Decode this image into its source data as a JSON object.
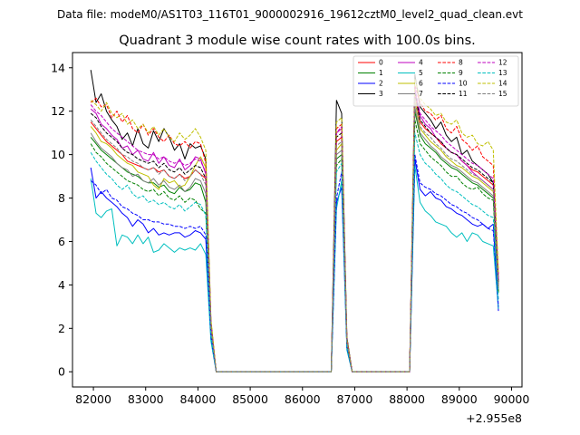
{
  "chart_data": {
    "type": "line",
    "suptitle": "Data file: modeM0/AS1T03_116T01_9000002916_19612cztM0_level2_quad_clean.evt",
    "title": "Quadrant 3 module wise count rates with 100.0s bins.",
    "xlabel": "",
    "ylabel": "",
    "x_offset_label": "+2.955e8",
    "xlim": [
      81600,
      90200
    ],
    "ylim": [
      -0.7,
      14.7
    ],
    "xticks": [
      82000,
      83000,
      84000,
      85000,
      86000,
      87000,
      88000,
      89000,
      90000
    ],
    "xtick_labels": [
      "82000",
      "83000",
      "84000",
      "85000",
      "86000",
      "87000",
      "88000",
      "89000",
      "90000"
    ],
    "yticks": [
      0,
      2,
      4,
      6,
      8,
      10,
      12,
      14
    ],
    "ytick_labels": [
      "0",
      "2",
      "4",
      "6",
      "8",
      "10",
      "12",
      "14"
    ],
    "x": [
      81950,
      82050,
      82150,
      82250,
      82350,
      82450,
      82550,
      82650,
      82750,
      82850,
      82950,
      83050,
      83150,
      83250,
      83350,
      83450,
      83550,
      83650,
      83750,
      83850,
      83950,
      84050,
      84150,
      84250,
      84350,
      84450,
      86550,
      86650,
      86750,
      86850,
      86950,
      88050,
      88150,
      88250,
      88350,
      88450,
      88550,
      88650,
      88750,
      88850,
      88950,
      89050,
      89150,
      89250,
      89350,
      89450,
      89550,
      89650,
      89750
    ],
    "legend": {
      "position": "top-right",
      "ncol": 4
    },
    "series": [
      {
        "name": "0",
        "color": "#ff0000",
        "dashed": false,
        "values": [
          11.5,
          11.2,
          10.9,
          10.6,
          10.4,
          10.2,
          10.0,
          9.7,
          9.6,
          9.5,
          9.4,
          9.3,
          9.4,
          9.2,
          9.3,
          9.0,
          8.9,
          9.1,
          8.9,
          9.0,
          9.3,
          9.1,
          8.9,
          2.0,
          0.0,
          0.0,
          0.0,
          10.6,
          10.8,
          1.4,
          0.0,
          0.0,
          12.8,
          11.5,
          11.2,
          11.0,
          10.8,
          10.5,
          10.3,
          10.1,
          10.0,
          9.7,
          9.5,
          9.3,
          9.2,
          9.0,
          8.8,
          8.6,
          4.0
        ]
      },
      {
        "name": "1",
        "color": "#008000",
        "dashed": false,
        "values": [
          10.8,
          10.5,
          10.2,
          10.0,
          9.8,
          9.6,
          9.4,
          9.2,
          9.1,
          9.0,
          8.8,
          8.7,
          8.7,
          8.5,
          8.6,
          8.3,
          8.2,
          8.5,
          8.3,
          8.4,
          8.7,
          8.6,
          7.8,
          2.0,
          0.0,
          0.0,
          0.0,
          9.8,
          10.0,
          1.3,
          0.0,
          0.0,
          12.0,
          10.9,
          10.5,
          10.3,
          10.1,
          9.8,
          9.6,
          9.4,
          9.3,
          9.1,
          8.9,
          8.7,
          8.6,
          8.4,
          8.2,
          8.0,
          3.7
        ]
      },
      {
        "name": "2",
        "color": "#0000ff",
        "dashed": false,
        "values": [
          9.4,
          8.0,
          8.3,
          8.0,
          7.8,
          7.6,
          7.3,
          7.1,
          6.7,
          7.0,
          6.8,
          6.4,
          6.6,
          6.3,
          6.4,
          6.3,
          6.4,
          6.4,
          6.2,
          6.3,
          6.5,
          6.4,
          6.1,
          1.5,
          0.0,
          0.0,
          0.0,
          7.8,
          8.5,
          1.1,
          0.0,
          0.0,
          9.8,
          8.4,
          8.1,
          8.3,
          8.0,
          7.9,
          7.6,
          7.5,
          7.3,
          7.2,
          7.0,
          6.8,
          6.7,
          6.8,
          6.6,
          6.8,
          2.8
        ]
      },
      {
        "name": "3",
        "color": "#000000",
        "dashed": false,
        "values": [
          13.9,
          12.4,
          12.8,
          12.0,
          11.6,
          11.3,
          10.7,
          11.0,
          10.4,
          11.2,
          10.5,
          10.3,
          11.1,
          10.6,
          11.2,
          10.8,
          10.2,
          10.5,
          9.8,
          10.5,
          10.3,
          10.4,
          9.8,
          2.3,
          0.0,
          0.0,
          0.0,
          12.5,
          11.9,
          1.6,
          0.0,
          0.0,
          13.7,
          12.2,
          11.9,
          11.6,
          11.2,
          11.5,
          10.9,
          10.6,
          10.8,
          10.0,
          10.2,
          9.7,
          9.5,
          9.3,
          9.1,
          8.7,
          4.2
        ]
      },
      {
        "name": "4",
        "color": "#bf00bf",
        "dashed": false,
        "values": [
          12.1,
          11.9,
          11.4,
          11.2,
          10.9,
          10.7,
          10.3,
          10.4,
          10.0,
          10.2,
          9.8,
          9.7,
          10.1,
          9.6,
          9.9,
          9.5,
          9.4,
          9.8,
          9.3,
          9.5,
          9.9,
          9.8,
          9.1,
          2.1,
          0.0,
          0.0,
          0.0,
          11.0,
          11.2,
          1.5,
          0.0,
          0.0,
          13.0,
          11.8,
          11.4,
          11.2,
          10.8,
          10.6,
          10.3,
          10.1,
          10.0,
          9.7,
          9.5,
          9.2,
          9.0,
          8.8,
          8.6,
          8.4,
          3.9
        ]
      },
      {
        "name": "5",
        "color": "#00bfbf",
        "dashed": false,
        "values": [
          8.9,
          7.3,
          7.1,
          7.4,
          7.5,
          5.8,
          6.3,
          6.2,
          5.9,
          6.3,
          5.9,
          6.2,
          5.5,
          5.6,
          5.9,
          5.7,
          5.5,
          5.7,
          5.6,
          5.7,
          5.6,
          5.9,
          5.4,
          1.4,
          0.0,
          0.0,
          0.0,
          7.5,
          8.8,
          1.0,
          0.0,
          0.0,
          9.5,
          7.8,
          7.4,
          7.2,
          6.9,
          6.8,
          6.7,
          6.4,
          6.2,
          6.4,
          6.0,
          6.4,
          6.3,
          6.0,
          5.9,
          5.8,
          2.9
        ]
      },
      {
        "name": "6",
        "color": "#bfbf00",
        "dashed": false,
        "values": [
          11.3,
          11.0,
          10.6,
          10.5,
          10.3,
          10.0,
          9.8,
          9.6,
          9.5,
          9.2,
          9.1,
          9.0,
          8.6,
          8.4,
          8.9,
          8.7,
          8.8,
          8.5,
          8.6,
          9.0,
          9.5,
          9.9,
          9.4,
          2.0,
          0.0,
          0.0,
          0.0,
          10.2,
          10.5,
          1.4,
          0.0,
          0.0,
          12.5,
          11.2,
          10.9,
          10.6,
          10.4,
          10.2,
          9.9,
          9.7,
          9.5,
          9.4,
          9.2,
          9.0,
          8.9,
          8.7,
          8.5,
          8.3,
          4.1
        ]
      },
      {
        "name": "7",
        "color": "#808080",
        "dashed": false,
        "values": [
          11.0,
          10.6,
          10.3,
          10.1,
          9.9,
          9.6,
          9.4,
          9.3,
          9.0,
          9.1,
          8.8,
          8.7,
          8.9,
          8.6,
          8.8,
          8.5,
          8.4,
          8.6,
          8.3,
          8.5,
          8.9,
          8.8,
          8.2,
          1.9,
          0.0,
          0.0,
          0.0,
          10.0,
          10.2,
          1.3,
          0.0,
          0.0,
          12.2,
          11.0,
          10.7,
          10.4,
          10.2,
          9.9,
          9.7,
          9.5,
          9.4,
          9.2,
          9.0,
          8.8,
          8.7,
          8.5,
          8.3,
          8.1,
          3.8
        ]
      },
      {
        "name": "8",
        "color": "#ff0000",
        "dashed": true,
        "values": [
          12.4,
          12.6,
          12.2,
          12.3,
          11.7,
          12.0,
          11.5,
          11.8,
          11.2,
          11.0,
          11.4,
          10.9,
          11.2,
          10.8,
          10.6,
          10.9,
          10.5,
          10.4,
          10.6,
          10.3,
          10.6,
          10.5,
          9.6,
          2.3,
          0.0,
          0.0,
          0.0,
          11.2,
          11.4,
          1.5,
          0.0,
          0.0,
          13.2,
          12.4,
          12.0,
          11.9,
          11.6,
          11.8,
          11.2,
          11.0,
          11.3,
          10.7,
          10.5,
          10.2,
          10.4,
          9.9,
          9.7,
          9.5,
          4.5
        ]
      },
      {
        "name": "9",
        "color": "#008000",
        "dashed": true,
        "values": [
          10.5,
          10.1,
          9.9,
          9.6,
          9.4,
          9.2,
          9.0,
          8.8,
          8.7,
          8.6,
          8.4,
          8.3,
          8.4,
          8.1,
          8.3,
          8.0,
          7.9,
          8.1,
          7.8,
          8.0,
          7.9,
          7.5,
          7.3,
          1.8,
          0.0,
          0.0,
          0.0,
          9.5,
          9.8,
          1.2,
          0.0,
          0.0,
          11.6,
          10.5,
          10.2,
          9.9,
          9.7,
          9.5,
          9.2,
          9.0,
          9.0,
          8.7,
          8.5,
          8.4,
          8.5,
          8.2,
          8.0,
          7.9,
          3.6
        ]
      },
      {
        "name": "10",
        "color": "#0000ff",
        "dashed": true,
        "values": [
          8.8,
          8.6,
          8.2,
          8.4,
          8.0,
          7.9,
          7.6,
          7.5,
          7.3,
          7.2,
          7.0,
          7.0,
          6.9,
          6.9,
          6.8,
          6.8,
          6.7,
          6.7,
          6.6,
          6.7,
          6.6,
          6.7,
          6.3,
          1.6,
          0.0,
          0.0,
          0.0,
          8.0,
          9.2,
          1.1,
          0.0,
          0.0,
          10.0,
          8.7,
          8.5,
          8.4,
          8.2,
          8.1,
          7.9,
          7.7,
          7.6,
          7.4,
          7.3,
          7.1,
          7.0,
          6.8,
          6.6,
          6.5,
          3.0
        ]
      },
      {
        "name": "11",
        "color": "#000000",
        "dashed": true,
        "values": [
          11.9,
          11.7,
          11.3,
          11.0,
          10.8,
          10.6,
          10.3,
          10.1,
          10.0,
          9.8,
          9.7,
          9.6,
          9.7,
          9.4,
          9.6,
          9.3,
          9.2,
          9.4,
          9.1,
          9.3,
          9.5,
          9.4,
          8.9,
          2.1,
          0.0,
          0.0,
          0.0,
          10.8,
          11.0,
          1.4,
          0.0,
          0.0,
          12.9,
          11.6,
          11.3,
          11.0,
          10.8,
          10.6,
          10.3,
          10.1,
          10.0,
          9.8,
          9.6,
          9.4,
          9.3,
          9.1,
          8.9,
          8.7,
          4.1
        ]
      },
      {
        "name": "12",
        "color": "#bf00bf",
        "dashed": true,
        "values": [
          12.3,
          12.0,
          11.8,
          11.5,
          11.2,
          11.0,
          10.8,
          10.6,
          10.4,
          10.2,
          10.1,
          10.0,
          10.0,
          9.8,
          9.9,
          9.7,
          9.6,
          9.7,
          9.5,
          9.6,
          9.8,
          9.7,
          9.2,
          2.2,
          0.0,
          0.0,
          0.0,
          11.0,
          11.3,
          1.4,
          0.0,
          0.0,
          13.1,
          11.9,
          11.6,
          11.3,
          11.1,
          10.9,
          10.6,
          10.4,
          10.2,
          10.0,
          9.8,
          9.6,
          9.5,
          9.3,
          9.1,
          8.9,
          4.2
        ]
      },
      {
        "name": "13",
        "color": "#00bfbf",
        "dashed": true,
        "values": [
          10.1,
          9.7,
          9.4,
          9.1,
          8.9,
          8.6,
          8.4,
          8.6,
          8.2,
          8.0,
          8.1,
          7.8,
          7.9,
          7.7,
          7.8,
          7.6,
          7.5,
          7.7,
          7.4,
          7.6,
          7.8,
          7.7,
          7.2,
          1.7,
          0.0,
          0.0,
          0.0,
          9.2,
          9.6,
          1.2,
          0.0,
          0.0,
          11.0,
          10.0,
          9.6,
          9.4,
          9.1,
          8.9,
          8.6,
          8.4,
          8.3,
          8.1,
          7.9,
          7.7,
          7.6,
          7.4,
          7.2,
          7.1,
          3.3
        ]
      },
      {
        "name": "14",
        "color": "#bfbf00",
        "dashed": true,
        "values": [
          12.5,
          12.3,
          12.0,
          12.4,
          11.9,
          11.7,
          11.9,
          11.4,
          11.6,
          11.2,
          11.4,
          11.0,
          11.3,
          10.9,
          11.2,
          10.8,
          10.6,
          11.0,
          10.7,
          10.9,
          11.2,
          10.8,
          10.2,
          2.4,
          0.0,
          0.0,
          0.0,
          11.5,
          11.7,
          1.5,
          0.0,
          0.0,
          13.5,
          12.6,
          12.3,
          12.1,
          11.8,
          11.9,
          11.5,
          11.4,
          11.6,
          11.0,
          10.8,
          10.9,
          10.5,
          10.4,
          10.6,
          10.2,
          4.6
        ]
      },
      {
        "name": "15",
        "color": "#808080",
        "dashed": true,
        "values": [
          11.6,
          11.3,
          11.0,
          10.7,
          10.5,
          10.3,
          10.0,
          9.9,
          9.7,
          9.6,
          9.4,
          9.3,
          9.4,
          9.1,
          9.3,
          9.0,
          8.9,
          9.1,
          8.8,
          9.0,
          9.3,
          9.1,
          8.6,
          2.0,
          0.0,
          0.0,
          0.0,
          10.4,
          10.6,
          1.4,
          0.0,
          0.0,
          12.6,
          11.3,
          11.0,
          10.8,
          10.5,
          10.3,
          10.0,
          9.8,
          9.7,
          9.5,
          9.3,
          9.1,
          9.0,
          8.8,
          8.6,
          8.4,
          3.9
        ]
      }
    ]
  }
}
